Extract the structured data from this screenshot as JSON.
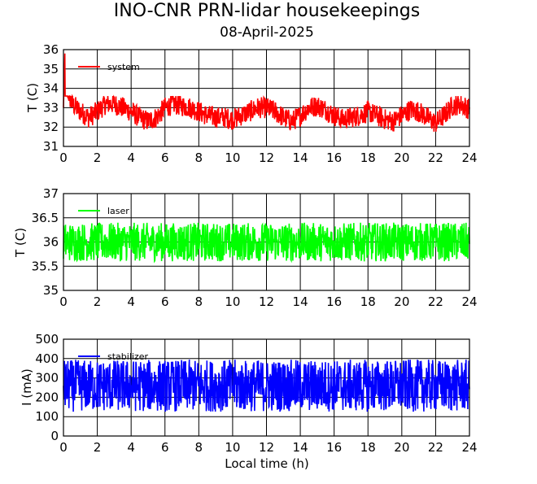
{
  "title": "INO-CNR PRN-lidar housekeepings",
  "subtitle": "08-April-2025",
  "chart_data": [
    {
      "type": "line",
      "ylabel": "T (C)",
      "xlabel": "",
      "xlim": [
        0,
        24
      ],
      "ylim": [
        31,
        36
      ],
      "xticks": [
        0,
        2,
        4,
        6,
        8,
        10,
        12,
        14,
        16,
        18,
        20,
        22,
        24
      ],
      "yticks": [
        31,
        32,
        33,
        34,
        35,
        36
      ],
      "grid": true,
      "legend_position": "top-left",
      "series": [
        {
          "name": "system",
          "color": "#ff0000",
          "x": [
            0,
            0.08,
            0.2,
            0.5,
            1,
            1.5,
            2,
            2.5,
            3,
            3.5,
            4,
            4.5,
            5,
            5.5,
            6,
            6.5,
            7,
            7.5,
            8,
            8.5,
            9,
            9.5,
            10,
            10.5,
            11,
            11.5,
            12,
            12.5,
            13,
            13.5,
            14,
            14.5,
            15,
            15.5,
            16,
            16.5,
            17,
            17.5,
            18,
            18.5,
            19,
            19.5,
            20,
            20.5,
            21,
            21.5,
            22,
            22.5,
            23,
            23.5,
            24
          ],
          "y": [
            33,
            35.8,
            34,
            33.2,
            32.8,
            32.5,
            32.8,
            33.2,
            33.2,
            33,
            32.8,
            32.5,
            32.3,
            32.5,
            33,
            33.2,
            33.1,
            33,
            32.8,
            32.6,
            32.5,
            32.5,
            32.4,
            32.6,
            32.8,
            33,
            33,
            32.8,
            32.5,
            32.3,
            32.6,
            33,
            33.1,
            32.9,
            32.6,
            32.4,
            32.5,
            32.6,
            32.8,
            32.6,
            32.4,
            32.3,
            32.6,
            32.9,
            32.8,
            32.5,
            32.2,
            32.6,
            33.1,
            33.2,
            32.9
          ],
          "amplitude": 0.55,
          "band": [
            31.5,
            33.6
          ]
        }
      ]
    },
    {
      "type": "line",
      "ylabel": "T (C)",
      "xlabel": "",
      "xlim": [
        0,
        24
      ],
      "ylim": [
        35,
        37
      ],
      "xticks": [
        0,
        2,
        4,
        6,
        8,
        10,
        12,
        14,
        16,
        18,
        20,
        22,
        24
      ],
      "yticks": [
        35,
        35.5,
        36,
        36.5,
        37
      ],
      "ytick_labels": [
        "35",
        "35.5",
        "36",
        "36.5",
        "37"
      ],
      "grid": true,
      "legend_position": "top-left",
      "series": [
        {
          "name": "laser",
          "color": "#00ff00",
          "center": 36.0,
          "amplitude": 0.4,
          "band": [
            35.2,
            36.9
          ]
        }
      ]
    },
    {
      "type": "line",
      "ylabel": "I (mA)",
      "xlabel": "Local time (h)",
      "xlim": [
        0,
        24
      ],
      "ylim": [
        0,
        500
      ],
      "xticks": [
        0,
        2,
        4,
        6,
        8,
        10,
        12,
        14,
        16,
        18,
        20,
        22,
        24
      ],
      "yticks": [
        0,
        100,
        200,
        300,
        400,
        500
      ],
      "grid": true,
      "legend_position": "top-left",
      "series": [
        {
          "name": "stabilizer",
          "color": "#0000ff",
          "center": 260,
          "amplitude": 135,
          "band": [
            90,
            440
          ]
        }
      ]
    }
  ]
}
